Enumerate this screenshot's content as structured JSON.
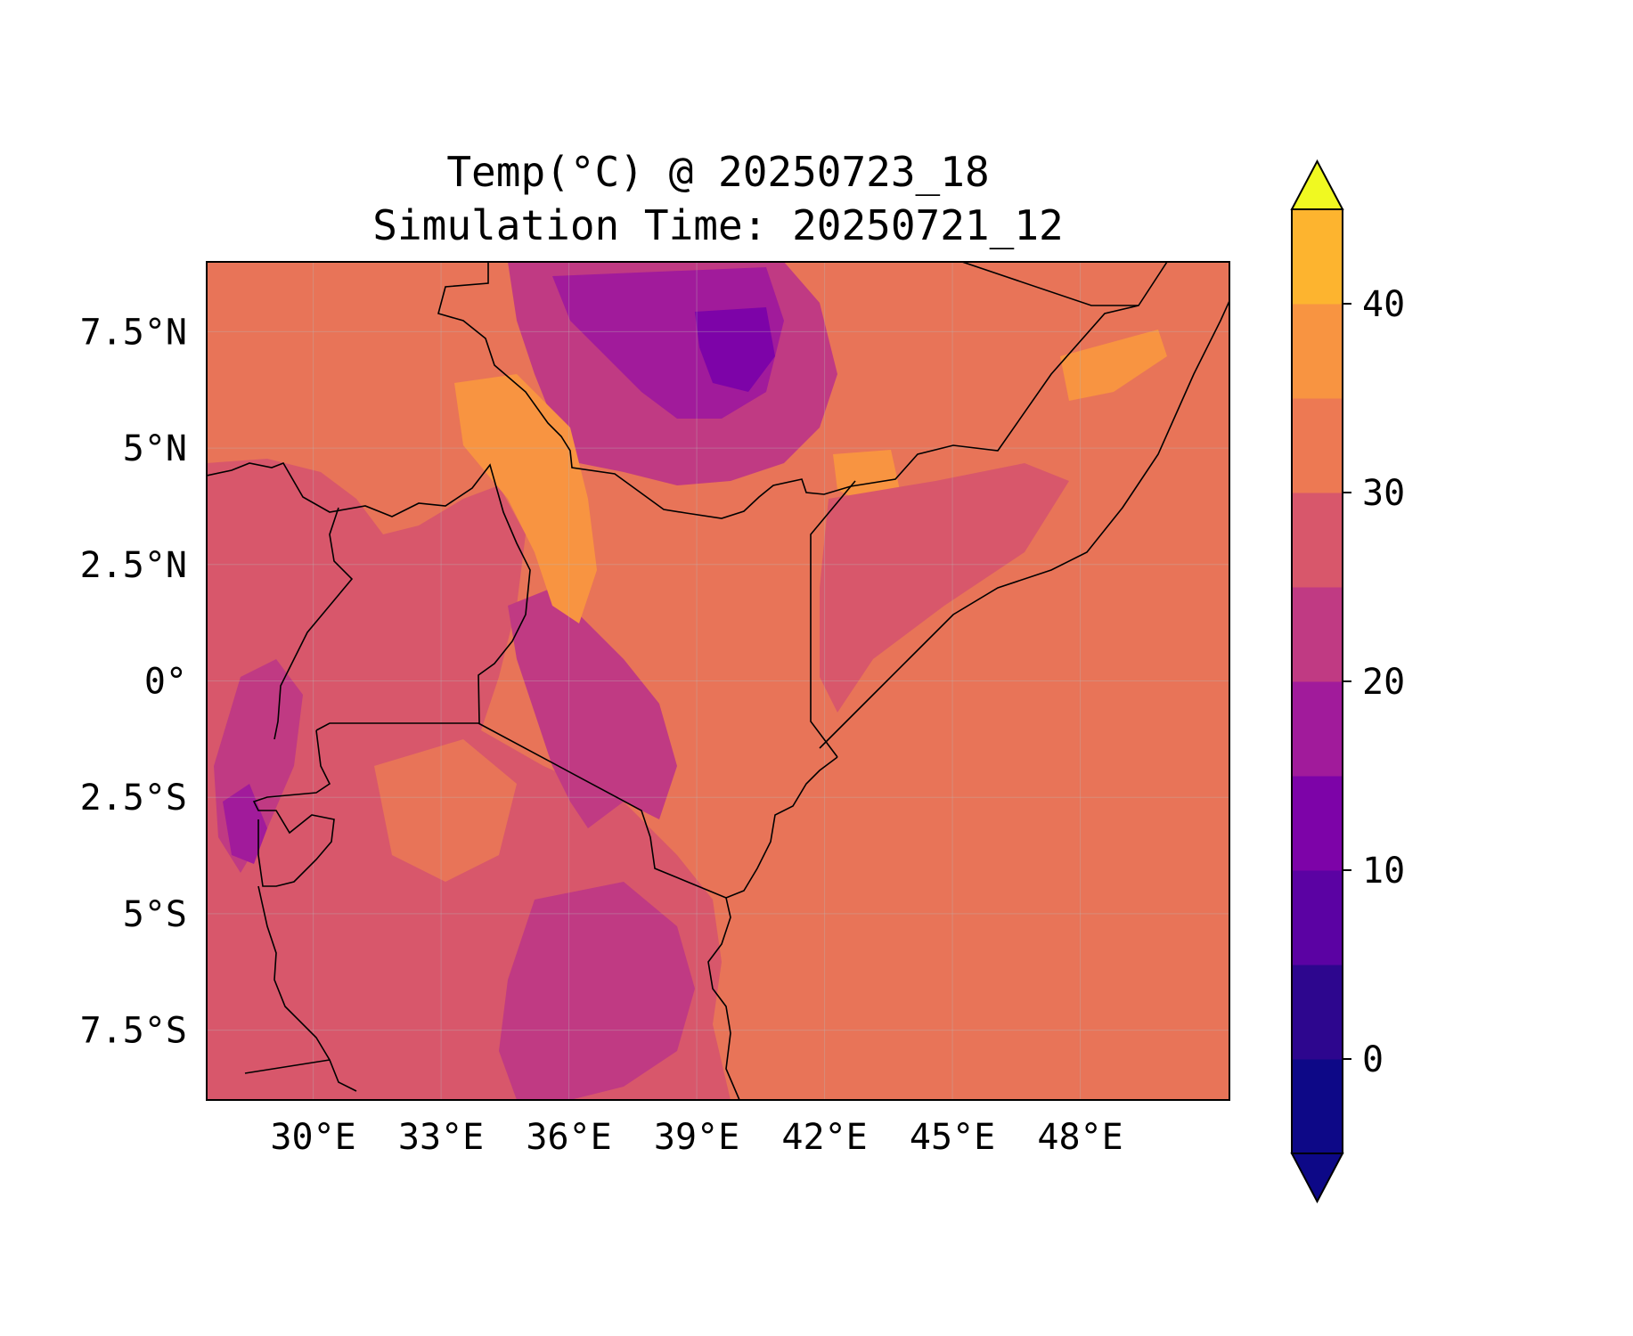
{
  "title": {
    "line1": "Temp(°C) @ 20250723_18",
    "line2": "Simulation Time: 20250721_12"
  },
  "map": {
    "lon_range": [
      27.5,
      51.5
    ],
    "lat_range": [
      -9.0,
      9.0
    ],
    "x_ticks": [
      {
        "lon": 30,
        "label": "30°E"
      },
      {
        "lon": 33,
        "label": "33°E"
      },
      {
        "lon": 36,
        "label": "36°E"
      },
      {
        "lon": 39,
        "label": "39°E"
      },
      {
        "lon": 42,
        "label": "42°E"
      },
      {
        "lon": 45,
        "label": "45°E"
      },
      {
        "lon": 48,
        "label": "48°E"
      }
    ],
    "y_ticks": [
      {
        "lat": 7.5,
        "label": "7.5°N"
      },
      {
        "lat": 5,
        "label": "5°N"
      },
      {
        "lat": 2.5,
        "label": "2.5°N"
      },
      {
        "lat": 0,
        "label": "0°"
      },
      {
        "lat": -2.5,
        "label": "2.5°S"
      },
      {
        "lat": -5,
        "label": "5°S"
      },
      {
        "lat": -7.5,
        "label": "7.5°S"
      }
    ],
    "ocean_color": "#e87458"
  },
  "colorbar": {
    "levels": [
      -5,
      0,
      5,
      10,
      15,
      20,
      25,
      30,
      35,
      40,
      45
    ],
    "colors": [
      "#0d0887",
      "#2d068e",
      "#5b02a3",
      "#7d03a8",
      "#a11b9b",
      "#c03a83",
      "#d8576b",
      "#ed7953",
      "#f89441",
      "#fdb42f",
      "#f3e625"
    ],
    "extend_low_color": "#0d0887",
    "extend_high_color": "#f0f921",
    "ticks": [
      {
        "value": 0,
        "label": "0"
      },
      {
        "value": 10,
        "label": "10"
      },
      {
        "value": 20,
        "label": "20"
      },
      {
        "value": 30,
        "label": "30"
      },
      {
        "value": 40,
        "label": "40"
      }
    ]
  }
}
